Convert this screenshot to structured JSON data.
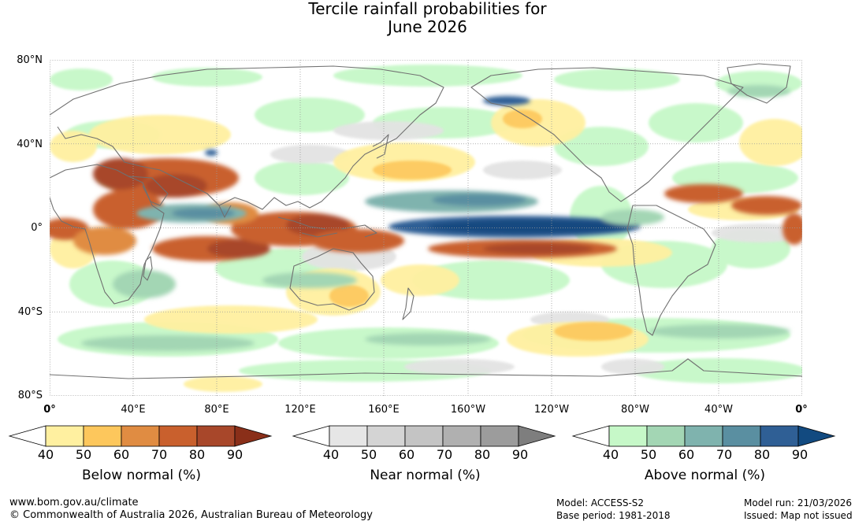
{
  "title": {
    "line1": "Tercile rainfall probabilities for",
    "line2": "June 2026"
  },
  "map": {
    "lat_labels": [
      "80°N",
      "40°N",
      "0°",
      "40°S",
      "80°S"
    ],
    "lon_labels": [
      "0°",
      "40°E",
      "80°E",
      "120°E",
      "160°E",
      "160°W",
      "120°W",
      "80°W",
      "40°W",
      "0°"
    ],
    "colors": {
      "ocean_bg": "#ffffff",
      "coastline": "#707070",
      "graticule": "#9a9a9a"
    }
  },
  "legends": [
    {
      "title": "Below normal (%)",
      "ticks": [
        "40",
        "50",
        "60",
        "70",
        "80",
        "90"
      ],
      "colors": [
        "#ffffff",
        "#fff0a0",
        "#fdc75c",
        "#e08c42",
        "#c9602d",
        "#a8472a",
        "#8a2f19"
      ]
    },
    {
      "title": "Near normal (%)",
      "ticks": [
        "40",
        "50",
        "60",
        "70",
        "80",
        "90"
      ],
      "colors": [
        "#ffffff",
        "#e6e6e6",
        "#d4d4d4",
        "#c4c4c4",
        "#b0b0b0",
        "#9c9c9c",
        "#7e7e7e"
      ]
    },
    {
      "title": "Above normal (%)",
      "ticks": [
        "40",
        "50",
        "60",
        "70",
        "80",
        "90"
      ],
      "colors": [
        "#ffffff",
        "#c6f8c8",
        "#a3d6b4",
        "#7fb3ae",
        "#5a8fa1",
        "#2f5f95",
        "#124a80"
      ]
    }
  ],
  "footer": {
    "website": "www.bom.gov.au/climate",
    "copyright": "© Commonwealth of Australia 2026, Australian Bureau of Meteorology",
    "model": "Model: ACCESS-S2",
    "base_period": "Base period: 1981-2018",
    "model_run": "Model run: 21/03/2026",
    "issued": "Issued: Map not issued"
  }
}
